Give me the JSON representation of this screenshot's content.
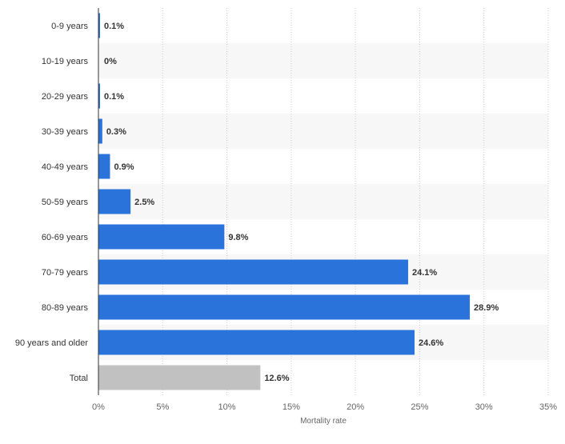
{
  "chart_data": {
    "type": "bar",
    "orientation": "horizontal",
    "categories": [
      "0-9 years",
      "10-19 years",
      "20-29 years",
      "30-39 years",
      "40-49 years",
      "50-59 years",
      "60-69 years",
      "70-79 years",
      "80-89 years",
      "90 years and older",
      "Total"
    ],
    "values": [
      0.1,
      0,
      0.1,
      0.3,
      0.9,
      2.5,
      9.8,
      24.1,
      28.9,
      24.6,
      12.6
    ],
    "data_labels": [
      "0.1%",
      "0%",
      "0.1%",
      "0.3%",
      "0.9%",
      "2.5%",
      "9.8%",
      "24.1%",
      "28.9%",
      "24.6%",
      "12.6%"
    ],
    "xlabel": "Mortality rate",
    "ylabel": "",
    "title": "",
    "xlim": [
      0,
      35
    ],
    "x_ticks": [
      0,
      5,
      10,
      15,
      20,
      25,
      30,
      35
    ],
    "x_tick_labels": [
      "0%",
      "5%",
      "10%",
      "15%",
      "20%",
      "25%",
      "30%",
      "35%"
    ],
    "grid": "vertical dotted",
    "legend": "none",
    "colors": {
      "bar": "#2a73db",
      "total_bar": "#c1c1c1",
      "band": "#f7f7f7",
      "grid": "#cccccc",
      "axis": "#333333"
    }
  }
}
